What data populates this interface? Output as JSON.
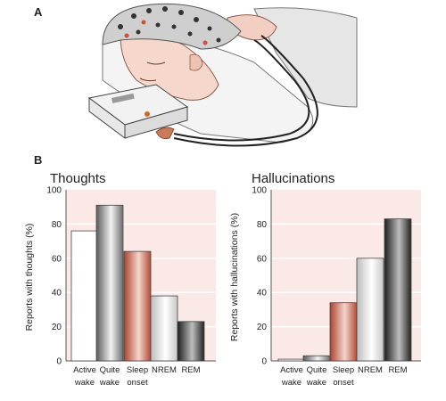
{
  "panel_labels": {
    "a": "A",
    "b": "B"
  },
  "chart_data": [
    {
      "type": "bar",
      "title": "Thoughts",
      "ylabel": "Reports with thoughts (%)",
      "ylim": [
        0,
        100
      ],
      "yticks": [
        "0",
        "20",
        "40",
        "60",
        "80",
        "100"
      ],
      "categories": [
        {
          "line1": "Active",
          "line2": "wake"
        },
        {
          "line1": "Quite",
          "line2": "wake"
        },
        {
          "line1": "Sleep",
          "line2": "onset"
        },
        {
          "line1": "NREM",
          "line2": ""
        },
        {
          "line1": "REM",
          "line2": ""
        }
      ],
      "values": [
        76,
        91,
        64,
        38,
        23
      ],
      "grid": true
    },
    {
      "type": "bar",
      "title": "Hallucinations",
      "ylabel": "Reports with hallucinations (%)",
      "ylim": [
        0,
        100
      ],
      "yticks": [
        "0",
        "20",
        "40",
        "60",
        "80",
        "100"
      ],
      "categories": [
        {
          "line1": "Active",
          "line2": "wake"
        },
        {
          "line1": "Quite",
          "line2": "wake"
        },
        {
          "line1": "Sleep",
          "line2": "onset"
        },
        {
          "line1": "NREM",
          "line2": ""
        },
        {
          "line1": "REM",
          "line2": ""
        }
      ],
      "values": [
        1,
        3,
        34,
        60,
        83
      ],
      "grid": true
    }
  ],
  "colors": {
    "plot_bg": "#fbe9e7",
    "grid": "#ffffff",
    "axis": "#555555",
    "bar_fills": [
      "#ffffff",
      "url(#g-gray)",
      "url(#g-red)",
      "url(#g-light)",
      "url(#g-dark)"
    ]
  }
}
